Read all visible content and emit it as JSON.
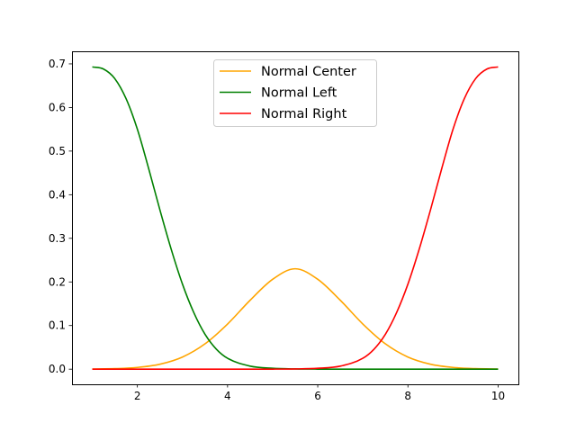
{
  "chart_data": {
    "type": "line",
    "title": "",
    "xlabel": "",
    "ylabel": "",
    "xlim": [
      0.55,
      10.45
    ],
    "ylim": [
      -0.0347,
      0.7288
    ],
    "xticks": [
      2,
      4,
      6,
      8,
      10
    ],
    "yticks": [
      0.0,
      0.1,
      0.2,
      0.3,
      0.4,
      0.5,
      0.6,
      0.7
    ],
    "xtick_labels": [
      "2",
      "4",
      "6",
      "8",
      "10"
    ],
    "ytick_labels": [
      "0.0",
      "0.1",
      "0.2",
      "0.3",
      "0.4",
      "0.5",
      "0.6",
      "0.7"
    ],
    "grid": false,
    "legend": "upper-center",
    "series": [
      {
        "name": "Normal Center",
        "color": "#ffa500",
        "x": [
          1.0,
          1.5,
          2.0,
          2.5,
          3.0,
          3.5,
          4.0,
          4.5,
          5.0,
          5.5,
          6.0,
          6.5,
          7.0,
          7.5,
          8.0,
          8.5,
          9.0,
          9.5,
          10.0
        ],
        "y": [
          0.0003,
          0.0012,
          0.004,
          0.0114,
          0.0278,
          0.0581,
          0.1035,
          0.158,
          0.2061,
          0.2302,
          0.2061,
          0.158,
          0.1035,
          0.0581,
          0.0278,
          0.0114,
          0.004,
          0.0012,
          0.0003
        ]
      },
      {
        "name": "Normal Left",
        "color": "#008000",
        "x": [
          1.0,
          1.25,
          1.5,
          1.75,
          2.0,
          2.25,
          2.5,
          2.75,
          3.0,
          3.25,
          3.5,
          3.75,
          4.0,
          4.5,
          5.0,
          5.5,
          6.0,
          7.0,
          8.0,
          9.0,
          10.0
        ],
        "y": [
          0.693,
          0.688,
          0.666,
          0.62,
          0.55,
          0.46,
          0.365,
          0.275,
          0.195,
          0.13,
          0.08,
          0.046,
          0.025,
          0.007,
          0.002,
          0.0005,
          0.0001,
          0.0,
          0.0,
          0.0,
          0.0
        ]
      },
      {
        "name": "Normal Right",
        "color": "#ff0000",
        "x": [
          1.0,
          2.0,
          3.0,
          4.0,
          5.0,
          5.5,
          6.0,
          6.5,
          7.0,
          7.25,
          7.5,
          7.75,
          8.0,
          8.25,
          8.5,
          8.75,
          9.0,
          9.25,
          9.5,
          9.75,
          10.0
        ],
        "y": [
          0.0,
          0.0,
          0.0,
          0.0,
          0.0001,
          0.0005,
          0.002,
          0.007,
          0.025,
          0.046,
          0.08,
          0.13,
          0.195,
          0.275,
          0.365,
          0.46,
          0.55,
          0.62,
          0.666,
          0.688,
          0.693
        ]
      }
    ]
  }
}
